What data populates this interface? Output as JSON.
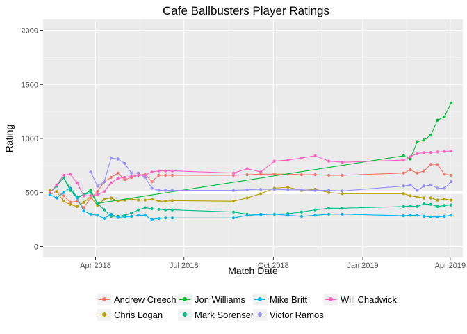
{
  "chart_data": {
    "type": "line",
    "title": "Cafe Ballbusters Player Ratings",
    "xlabel": "Match Date",
    "ylabel": "Rating",
    "x_ticks": [
      "2018-04-01",
      "2018-07-01",
      "2018-10-01",
      "2019-01-01",
      "2019-04-01"
    ],
    "x_tick_labels": [
      "Apr 2018",
      "Jul 2018",
      "Oct 2018",
      "Jan 2019",
      "Apr 2019"
    ],
    "xlim": [
      "2018-02-06",
      "2019-04-14"
    ],
    "y_ticks": [
      0,
      500,
      1000,
      1500,
      2000
    ],
    "ylim": [
      -100,
      2100
    ],
    "grid": true,
    "legend_position": "bottom",
    "reference_line_y": 500,
    "series": [
      {
        "name": "Andrew Creech",
        "color": "#F8766D",
        "points": [
          [
            "2018-02-13",
            480
          ],
          [
            "2018-02-20",
            510
          ],
          [
            "2018-02-27",
            470
          ],
          [
            "2018-03-06",
            410
          ],
          [
            "2018-03-13",
            420
          ],
          [
            "2018-03-20",
            360
          ],
          [
            "2018-03-27",
            450
          ],
          [
            "2018-04-03",
            510
          ],
          [
            "2018-04-10",
            600
          ],
          [
            "2018-04-17",
            640
          ],
          [
            "2018-04-24",
            680
          ],
          [
            "2018-05-01",
            620
          ],
          [
            "2018-05-08",
            640
          ],
          [
            "2018-05-15",
            660
          ],
          [
            "2018-05-22",
            670
          ],
          [
            "2018-05-29",
            600
          ],
          [
            "2018-06-05",
            660
          ],
          [
            "2018-06-12",
            660
          ],
          [
            "2018-06-19",
            660
          ],
          [
            "2018-08-21",
            660
          ],
          [
            "2018-09-04",
            665
          ],
          [
            "2018-09-18",
            670
          ],
          [
            "2018-10-02",
            670
          ],
          [
            "2018-10-16",
            670
          ],
          [
            "2018-10-30",
            665
          ],
          [
            "2018-11-13",
            665
          ],
          [
            "2018-11-27",
            660
          ],
          [
            "2018-12-11",
            660
          ],
          [
            "2019-02-12",
            680
          ],
          [
            "2019-02-19",
            710
          ],
          [
            "2019-02-26",
            680
          ],
          [
            "2019-03-05",
            700
          ],
          [
            "2019-03-12",
            760
          ],
          [
            "2019-03-19",
            760
          ],
          [
            "2019-03-26",
            670
          ],
          [
            "2019-04-02",
            660
          ]
        ]
      },
      {
        "name": "Chris Logan",
        "color": "#B79F00",
        "points": [
          [
            "2018-02-13",
            520
          ],
          [
            "2018-02-20",
            510
          ],
          [
            "2018-02-27",
            420
          ],
          [
            "2018-03-06",
            390
          ],
          [
            "2018-03-13",
            370
          ],
          [
            "2018-03-20",
            410
          ],
          [
            "2018-03-27",
            460
          ],
          [
            "2018-04-03",
            380
          ],
          [
            "2018-04-10",
            440
          ],
          [
            "2018-04-17",
            450
          ],
          [
            "2018-04-24",
            420
          ],
          [
            "2018-05-01",
            430
          ],
          [
            "2018-05-08",
            440
          ],
          [
            "2018-05-15",
            430
          ],
          [
            "2018-05-22",
            430
          ],
          [
            "2018-05-29",
            440
          ],
          [
            "2018-06-05",
            420
          ],
          [
            "2018-06-12",
            420
          ],
          [
            "2018-06-19",
            425
          ],
          [
            "2018-08-21",
            420
          ],
          [
            "2018-09-04",
            450
          ],
          [
            "2018-09-18",
            490
          ],
          [
            "2018-10-02",
            540
          ],
          [
            "2018-10-16",
            550
          ],
          [
            "2018-10-30",
            520
          ],
          [
            "2018-11-13",
            530
          ],
          [
            "2018-11-27",
            500
          ],
          [
            "2018-12-11",
            490
          ],
          [
            "2019-02-12",
            490
          ],
          [
            "2019-02-19",
            470
          ],
          [
            "2019-02-26",
            460
          ],
          [
            "2019-03-05",
            450
          ],
          [
            "2019-03-12",
            450
          ],
          [
            "2019-03-19",
            430
          ],
          [
            "2019-03-26",
            440
          ],
          [
            "2019-04-02",
            430
          ]
        ]
      },
      {
        "name": "Jon Williams",
        "color": "#00BA38",
        "points": [
          [
            "2018-02-13",
            500
          ],
          [
            "2018-02-20",
            560
          ],
          [
            "2018-02-27",
            640
          ],
          [
            "2018-03-06",
            520
          ],
          [
            "2018-03-13",
            450
          ],
          [
            "2018-03-20",
            480
          ],
          [
            "2018-03-27",
            520
          ],
          [
            "2018-04-03",
            400
          ],
          [
            "2019-02-12",
            840
          ],
          [
            "2019-02-19",
            810
          ],
          [
            "2019-02-26",
            970
          ],
          [
            "2019-03-05",
            985
          ],
          [
            "2019-03-12",
            1030
          ],
          [
            "2019-03-19",
            1170
          ],
          [
            "2019-03-26",
            1200
          ],
          [
            "2019-04-02",
            1330
          ]
        ]
      },
      {
        "name": "Mark Sorensen",
        "color": "#00C08B",
        "points": [
          [
            "2018-02-13",
            500
          ],
          [
            "2018-02-20",
            560
          ],
          [
            "2018-02-27",
            640
          ],
          [
            "2018-03-06",
            540
          ],
          [
            "2018-03-13",
            460
          ],
          [
            "2018-03-20",
            480
          ],
          [
            "2018-03-27",
            500
          ],
          [
            "2018-04-03",
            400
          ],
          [
            "2018-04-10",
            340
          ],
          [
            "2018-04-17",
            280
          ],
          [
            "2018-04-24",
            280
          ],
          [
            "2018-05-01",
            290
          ],
          [
            "2018-05-08",
            310
          ],
          [
            "2018-05-15",
            340
          ],
          [
            "2018-05-22",
            360
          ],
          [
            "2018-05-29",
            350
          ],
          [
            "2018-06-05",
            345
          ],
          [
            "2018-06-12",
            340
          ],
          [
            "2018-06-19",
            340
          ],
          [
            "2018-08-21",
            320
          ],
          [
            "2018-09-04",
            300
          ],
          [
            "2018-09-18",
            300
          ],
          [
            "2018-10-02",
            300
          ],
          [
            "2018-10-16",
            305
          ],
          [
            "2018-10-30",
            320
          ],
          [
            "2018-11-13",
            340
          ],
          [
            "2018-11-27",
            355
          ],
          [
            "2018-12-11",
            355
          ],
          [
            "2019-02-12",
            370
          ],
          [
            "2019-02-19",
            375
          ],
          [
            "2019-02-26",
            370
          ],
          [
            "2019-03-05",
            395
          ],
          [
            "2019-03-12",
            390
          ],
          [
            "2019-03-19",
            370
          ],
          [
            "2019-03-26",
            380
          ],
          [
            "2019-04-02",
            385
          ]
        ]
      },
      {
        "name": "Mike Britt",
        "color": "#00B4F0",
        "points": [
          [
            "2018-02-13",
            480
          ],
          [
            "2018-02-20",
            450
          ],
          [
            "2018-02-27",
            500
          ],
          [
            "2018-03-06",
            540
          ],
          [
            "2018-03-13",
            450
          ],
          [
            "2018-03-20",
            330
          ],
          [
            "2018-03-27",
            300
          ],
          [
            "2018-04-03",
            290
          ],
          [
            "2018-04-10",
            260
          ],
          [
            "2018-04-17",
            300
          ],
          [
            "2018-04-24",
            270
          ],
          [
            "2018-05-01",
            275
          ],
          [
            "2018-05-08",
            280
          ],
          [
            "2018-05-15",
            290
          ],
          [
            "2018-05-22",
            290
          ],
          [
            "2018-05-29",
            250
          ],
          [
            "2018-06-05",
            260
          ],
          [
            "2018-06-12",
            265
          ],
          [
            "2018-06-19",
            265
          ],
          [
            "2018-08-21",
            265
          ],
          [
            "2018-09-04",
            290
          ],
          [
            "2018-09-18",
            295
          ],
          [
            "2018-10-02",
            300
          ],
          [
            "2018-10-16",
            290
          ],
          [
            "2018-10-30",
            280
          ],
          [
            "2018-11-13",
            290
          ],
          [
            "2018-11-27",
            300
          ],
          [
            "2018-12-11",
            300
          ],
          [
            "2019-02-12",
            285
          ],
          [
            "2019-02-19",
            290
          ],
          [
            "2019-02-26",
            290
          ],
          [
            "2019-03-05",
            280
          ],
          [
            "2019-03-12",
            275
          ],
          [
            "2019-03-19",
            275
          ],
          [
            "2019-03-26",
            280
          ],
          [
            "2019-04-02",
            290
          ]
        ]
      },
      {
        "name": "Victor Ramos",
        "color": "#9590FF",
        "points": [
          [
            "2018-03-27",
            690
          ],
          [
            "2018-04-03",
            560
          ],
          [
            "2018-04-10",
            600
          ],
          [
            "2018-04-17",
            820
          ],
          [
            "2018-04-24",
            810
          ],
          [
            "2018-05-01",
            770
          ],
          [
            "2018-05-08",
            680
          ],
          [
            "2018-05-15",
            680
          ],
          [
            "2018-05-22",
            640
          ],
          [
            "2018-05-29",
            540
          ],
          [
            "2018-06-05",
            520
          ],
          [
            "2018-06-12",
            520
          ],
          [
            "2018-06-19",
            520
          ],
          [
            "2018-08-21",
            520
          ],
          [
            "2018-09-04",
            525
          ],
          [
            "2018-09-18",
            530
          ],
          [
            "2018-10-02",
            530
          ],
          [
            "2018-10-16",
            525
          ],
          [
            "2018-10-30",
            525
          ],
          [
            "2018-11-13",
            520
          ],
          [
            "2018-11-27",
            520
          ],
          [
            "2018-12-11",
            515
          ],
          [
            "2019-02-12",
            560
          ],
          [
            "2019-02-19",
            570
          ],
          [
            "2019-02-26",
            520
          ],
          [
            "2019-03-05",
            560
          ],
          [
            "2019-03-12",
            570
          ],
          [
            "2019-03-19",
            540
          ],
          [
            "2019-03-26",
            540
          ],
          [
            "2019-04-02",
            600
          ]
        ]
      },
      {
        "name": "Will Chadwick",
        "color": "#FF61C3",
        "points": [
          [
            "2018-02-13",
            500
          ],
          [
            "2018-02-20",
            570
          ],
          [
            "2018-02-27",
            660
          ],
          [
            "2018-03-06",
            670
          ],
          [
            "2018-03-13",
            590
          ],
          [
            "2018-03-20",
            470
          ],
          [
            "2018-03-27",
            470
          ],
          [
            "2018-04-03",
            480
          ],
          [
            "2018-04-10",
            510
          ],
          [
            "2018-04-17",
            590
          ],
          [
            "2018-04-24",
            630
          ],
          [
            "2018-05-01",
            640
          ],
          [
            "2018-05-08",
            650
          ],
          [
            "2018-05-15",
            660
          ],
          [
            "2018-05-22",
            660
          ],
          [
            "2018-05-29",
            690
          ],
          [
            "2018-06-05",
            700
          ],
          [
            "2018-06-12",
            700
          ],
          [
            "2018-06-19",
            700
          ],
          [
            "2018-08-21",
            680
          ],
          [
            "2018-09-04",
            720
          ],
          [
            "2018-09-18",
            690
          ],
          [
            "2018-10-02",
            790
          ],
          [
            "2018-10-16",
            800
          ],
          [
            "2018-10-30",
            820
          ],
          [
            "2018-11-13",
            840
          ],
          [
            "2018-11-27",
            790
          ],
          [
            "2018-12-11",
            780
          ],
          [
            "2019-02-12",
            800
          ],
          [
            "2019-02-19",
            830
          ],
          [
            "2019-02-26",
            860
          ],
          [
            "2019-03-05",
            870
          ],
          [
            "2019-03-12",
            870
          ],
          [
            "2019-03-19",
            875
          ],
          [
            "2019-03-26",
            880
          ],
          [
            "2019-04-02",
            885
          ]
        ]
      }
    ]
  },
  "legend_order": [
    [
      "Andrew Creech",
      "Jon Williams",
      "Mike Britt",
      "Will Chadwick"
    ],
    [
      "Chris Logan",
      "Mark Sorensen",
      "Victor Ramos"
    ]
  ]
}
